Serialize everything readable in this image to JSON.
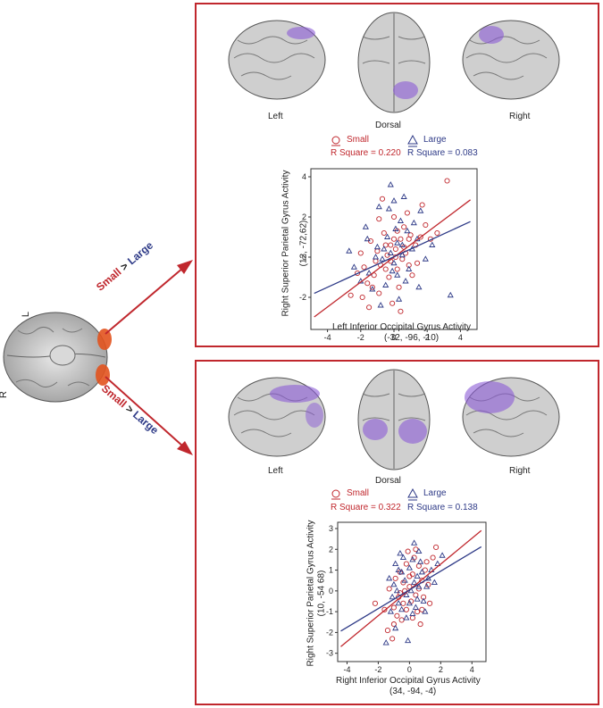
{
  "seed_brain": {
    "label_L": "L",
    "label_R": "R"
  },
  "arrows": [
    {
      "cond_a": "Small",
      "op": " > ",
      "cond_b": "Large"
    },
    {
      "cond_a": "Small",
      "op": " > ",
      "cond_b": "Large"
    }
  ],
  "colors": {
    "small": "#c0272d",
    "large": "#2e3a87",
    "frame": "#c0272d",
    "activation": "#8a5ad6"
  },
  "panels": [
    {
      "views": [
        "Left",
        "Dorsal",
        "Right"
      ],
      "legend": {
        "small": "Small",
        "large": "Large",
        "r2_small": "R Square = 0.220",
        "r2_large": "R Square = 0.083"
      },
      "chart_data": {
        "type": "scatter",
        "xlabel": "Left Inferior Occipital Gyrus Activity",
        "xlabel2": "(-32, -96, -10)",
        "ylabel": "Right Superior Parietal Gyrus Activity",
        "ylabel2": "(12, -72,62)",
        "xlim": [
          -5,
          5
        ],
        "ylim": [
          -3.6,
          4.4
        ],
        "xticks": [
          "-4",
          "-2",
          "0",
          "2",
          "4"
        ],
        "yticks": [
          "4",
          "2",
          "0",
          "-2"
        ],
        "xtick_vals": [
          -4,
          -2,
          0,
          2,
          4
        ],
        "ytick_vals": [
          4,
          2,
          0,
          -2
        ],
        "series": [
          {
            "name": "Small",
            "marker": "circle",
            "fit": {
              "slope": 0.62,
              "intercept": 0.0,
              "x0": -4.8,
              "x1": 4.6
            },
            "points": [
              [
                -1.6,
                -1.3
              ],
              [
                -1.2,
                -0.9
              ],
              [
                -0.8,
                -0.4
              ],
              [
                -0.5,
                0.6
              ],
              [
                -0.2,
                -0.2
              ],
              [
                0.1,
                0.4
              ],
              [
                0.4,
                0.9
              ],
              [
                0.7,
                0.2
              ],
              [
                1.0,
                1.1
              ],
              [
                1.3,
                0.6
              ],
              [
                -1.0,
                0.3
              ],
              [
                -0.3,
                -1.0
              ],
              [
                0.2,
                -0.6
              ],
              [
                0.6,
                1.5
              ],
              [
                -0.6,
                1.2
              ],
              [
                1.6,
                1.0
              ],
              [
                -1.9,
                -2.0
              ],
              [
                -0.9,
                -1.8
              ],
              [
                0.0,
                2.0
              ],
              [
                0.9,
                -0.4
              ],
              [
                3.2,
                3.8
              ],
              [
                -2.2,
                -0.8
              ],
              [
                -1.4,
                0.8
              ],
              [
                1.9,
                1.6
              ],
              [
                0.3,
                -1.5
              ],
              [
                -0.4,
                0.1
              ],
              [
                0.5,
                -0.1
              ],
              [
                0.0,
                0.9
              ],
              [
                -1.1,
                -0.2
              ],
              [
                1.1,
                -0.9
              ],
              [
                -1.5,
                -2.5
              ],
              [
                -0.7,
                2.9
              ],
              [
                0.8,
                2.2
              ],
              [
                -0.1,
                -2.3
              ],
              [
                2.2,
                0.9
              ],
              [
                1.4,
                -0.3
              ],
              [
                -2.0,
                0.2
              ],
              [
                0.2,
                1.3
              ],
              [
                -0.2,
                0.6
              ],
              [
                0.6,
                0.5
              ],
              [
                -0.5,
                -0.6
              ],
              [
                -1.3,
                -1.5
              ],
              [
                1.7,
                2.6
              ],
              [
                -2.6,
                -1.9
              ],
              [
                0.4,
                -2.7
              ],
              [
                -0.9,
                1.9
              ],
              [
                2.6,
                1.2
              ],
              [
                -1.8,
                -0.5
              ],
              [
                0.9,
                0.9
              ],
              [
                0.1,
                0.0
              ]
            ]
          },
          {
            "name": "Large",
            "marker": "triangle",
            "fit": {
              "slope": 0.38,
              "intercept": 0.02,
              "x0": -4.8,
              "x1": 4.6
            },
            "points": [
              [
                -1.5,
                -0.8
              ],
              [
                -1.0,
                0.5
              ],
              [
                -0.7,
                -0.1
              ],
              [
                -0.4,
                1.0
              ],
              [
                -0.1,
                -0.7
              ],
              [
                0.2,
                0.7
              ],
              [
                0.5,
                0.1
              ],
              [
                0.8,
                1.3
              ],
              [
                1.1,
                0.4
              ],
              [
                -1.3,
                -1.6
              ],
              [
                -0.6,
                0.4
              ],
              [
                0.0,
                -0.3
              ],
              [
                0.4,
                1.8
              ],
              [
                0.7,
                -1.2
              ],
              [
                1.4,
                0.9
              ],
              [
                -2.4,
                -0.5
              ],
              [
                -0.2,
                3.6
              ],
              [
                0.6,
                3.0
              ],
              [
                -1.7,
                1.5
              ],
              [
                1.9,
                -0.1
              ],
              [
                3.4,
                -1.9
              ],
              [
                -0.8,
                -2.4
              ],
              [
                0.3,
                -2.1
              ],
              [
                -2.0,
                -1.2
              ],
              [
                1.6,
                2.3
              ],
              [
                -0.3,
                2.4
              ],
              [
                0.9,
                -0.6
              ],
              [
                -1.1,
                0.0
              ],
              [
                0.1,
                1.4
              ],
              [
                -0.5,
                -1.4
              ],
              [
                1.2,
                1.7
              ],
              [
                2.3,
                0.6
              ],
              [
                -1.6,
                0.9
              ],
              [
                0.2,
                -0.9
              ],
              [
                -0.9,
                2.5
              ],
              [
                1.5,
                -1.5
              ],
              [
                -2.7,
                0.3
              ],
              [
                0.5,
                0.6
              ],
              [
                -0.2,
                0.2
              ],
              [
                0.0,
                2.8
              ]
            ]
          }
        ]
      }
    },
    {
      "views": [
        "Left",
        "Dorsal",
        "Right"
      ],
      "legend": {
        "small": "Small",
        "large": "Large",
        "r2_small": "R Square = 0.322",
        "r2_large": "R Square = 0.138"
      },
      "chart_data": {
        "type": "scatter",
        "xlabel": "Right Inferior Occipital Gyrus Activity",
        "xlabel2": "(34, -94, -4)",
        "ylabel": "Right Superior Parietal Gyrus Activity",
        "ylabel2": "(10, -54 68)",
        "xlim": [
          -4.6,
          4.9
        ],
        "ylim": [
          -3.4,
          3.3
        ],
        "xticks": [
          "-4",
          "-2",
          "0",
          "2",
          "4"
        ],
        "yticks": [
          "3",
          "2",
          "1",
          "0",
          "-1",
          "-2",
          "-3"
        ],
        "xtick_vals": [
          -4,
          -2,
          0,
          2,
          4
        ],
        "ytick_vals": [
          3,
          2,
          1,
          0,
          -1,
          -2,
          -3
        ],
        "series": [
          {
            "name": "Small",
            "marker": "circle",
            "fit": {
              "slope": 0.62,
              "intercept": 0.05,
              "x0": -4.4,
              "x1": 4.6
            },
            "points": [
              [
                -1.0,
                -0.8
              ],
              [
                -0.7,
                -0.3
              ],
              [
                -0.4,
                0.4
              ],
              [
                -0.2,
                -0.9
              ],
              [
                0.0,
                0.2
              ],
              [
                0.2,
                0.8
              ],
              [
                0.4,
                -0.2
              ],
              [
                0.6,
                1.2
              ],
              [
                0.8,
                0.5
              ],
              [
                1.0,
                1.0
              ],
              [
                -0.9,
                0.6
              ],
              [
                -0.5,
                -1.4
              ],
              [
                0.3,
                1.6
              ],
              [
                0.5,
                -1.0
              ],
              [
                1.2,
                0.3
              ],
              [
                -1.4,
                -1.9
              ],
              [
                -1.1,
                -2.3
              ],
              [
                -0.1,
                1.9
              ],
              [
                0.7,
                -1.6
              ],
              [
                1.5,
                1.6
              ],
              [
                1.7,
                2.1
              ],
              [
                -0.3,
                0.0
              ],
              [
                0.1,
                -0.5
              ],
              [
                -0.6,
                0.9
              ],
              [
                0.9,
                -0.3
              ],
              [
                -1.6,
                -0.9
              ],
              [
                -2.2,
                -0.6
              ],
              [
                0.4,
                2.0
              ],
              [
                -0.8,
                -1.2
              ],
              [
                1.3,
                -0.6
              ],
              [
                -0.2,
                1.3
              ],
              [
                0.6,
                0.1
              ],
              [
                -1.3,
                0.1
              ],
              [
                0.2,
                -1.3
              ],
              [
                1.1,
                1.4
              ],
              [
                -0.4,
                -0.6
              ],
              [
                0.0,
                0.7
              ],
              [
                -1.0,
                -1.6
              ],
              [
                0.8,
                -0.9
              ],
              [
                -0.6,
                -0.1
              ]
            ]
          },
          {
            "name": "Large",
            "marker": "triangle",
            "fit": {
              "slope": 0.45,
              "intercept": 0.05,
              "x0": -4.4,
              "x1": 4.6
            },
            "points": [
              [
                -1.0,
                0.3
              ],
              [
                -0.7,
                -0.6
              ],
              [
                -0.5,
                0.9
              ],
              [
                -0.2,
                -0.2
              ],
              [
                0.0,
                1.1
              ],
              [
                0.3,
                0.4
              ],
              [
                0.5,
                -0.4
              ],
              [
                0.8,
                0.9
              ],
              [
                1.1,
                0.2
              ],
              [
                -1.2,
                -1.0
              ],
              [
                -0.4,
                1.6
              ],
              [
                0.2,
                -1.1
              ],
              [
                0.6,
                1.9
              ],
              [
                -0.9,
                1.3
              ],
              [
                1.4,
                1.0
              ],
              [
                -1.5,
                -2.5
              ],
              [
                -0.1,
                -2.4
              ],
              [
                1.8,
                1.3
              ],
              [
                2.1,
                1.7
              ],
              [
                -0.3,
                0.5
              ],
              [
                0.4,
                -0.8
              ],
              [
                -0.8,
                0.0
              ],
              [
                0.9,
                -0.5
              ],
              [
                -0.6,
                1.8
              ],
              [
                1.2,
                0.6
              ],
              [
                0.1,
                0.0
              ],
              [
                -1.3,
                0.6
              ],
              [
                0.7,
                1.4
              ],
              [
                -0.2,
                -1.3
              ],
              [
                0.3,
                2.3
              ],
              [
                -1.1,
                -0.3
              ],
              [
                1.0,
                -1.0
              ],
              [
                0.5,
                0.7
              ],
              [
                -0.5,
                -0.9
              ],
              [
                1.6,
                0.4
              ],
              [
                0.0,
                -0.6
              ],
              [
                -0.7,
                1.0
              ],
              [
                0.6,
                0.2
              ],
              [
                0.2,
                1.5
              ],
              [
                -0.9,
                -1.8
              ]
            ]
          }
        ]
      }
    }
  ]
}
